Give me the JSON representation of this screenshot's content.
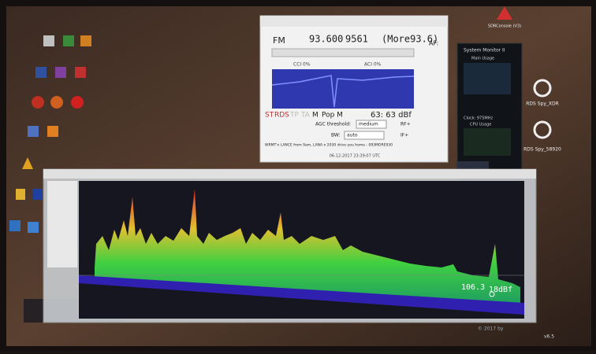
{
  "fm_window": {
    "band": "FM",
    "frequency": "93.600",
    "pi": "9561",
    "ps": "(More93.6)",
    "af": "AF:",
    "cci": "CCI 0%",
    "aci": "ACI 0%",
    "status": [
      "ST",
      "RDS",
      "TP",
      "TA",
      "M",
      "Pop M"
    ],
    "signal": "63: 63 dBf",
    "agc_label": "AGC threshold:",
    "agc": "medium",
    "rf": "RF+",
    "bw_label": "BW:",
    "bw": "auto",
    "if": "IF+",
    "radiotext": "WRMT'n LANCE from 9am, LANA n 2030 drive you home - 093MORE930",
    "time": "06-12-2017 23:39:07 UTC"
  },
  "spectrum": {
    "cursor_freq": "106.3",
    "cursor_level": "18dBf",
    "footer": "© 2017 by",
    "version": "v6.5"
  },
  "system_monitor": {
    "title": "System Monitor II",
    "main_usage": "Main Usage",
    "clock": "Clock: 975MHz",
    "cpu": "CPU Usage"
  },
  "desktop_icons": [
    "SDRConsole (V3)",
    "RDS Spy_XDR",
    "RDS Spy_58920"
  ]
}
